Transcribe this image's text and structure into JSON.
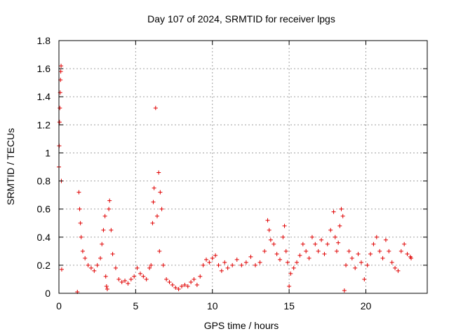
{
  "chart_data": {
    "type": "scatter",
    "title": "Day 107 of 2024, SRMTID for receiver lpgs",
    "xlabel": "GPS time / hours",
    "ylabel": "SRMTID / TECUs",
    "xlim": [
      0,
      24
    ],
    "ylim": [
      0,
      1.8
    ],
    "xticks": [
      0,
      5,
      10,
      15,
      20
    ],
    "yticks": [
      0,
      0.2,
      0.4,
      0.6,
      0.8,
      1,
      1.2,
      1.4,
      1.6,
      1.8
    ],
    "grid": true,
    "marker": "+",
    "color": "#e00000",
    "series": [
      {
        "name": "lpgs",
        "points": [
          [
            0.0,
            0.9
          ],
          [
            0.02,
            1.05
          ],
          [
            0.04,
            1.22
          ],
          [
            0.06,
            1.32
          ],
          [
            0.08,
            1.43
          ],
          [
            0.1,
            1.52
          ],
          [
            0.12,
            1.58
          ],
          [
            0.14,
            1.62
          ],
          [
            0.16,
            0.8
          ],
          [
            0.18,
            0.17
          ],
          [
            1.2,
            0.01
          ],
          [
            1.3,
            0.72
          ],
          [
            1.35,
            0.6
          ],
          [
            1.4,
            0.5
          ],
          [
            1.45,
            0.4
          ],
          [
            1.55,
            0.3
          ],
          [
            1.7,
            0.25
          ],
          [
            1.9,
            0.2
          ],
          [
            2.1,
            0.18
          ],
          [
            2.3,
            0.16
          ],
          [
            2.5,
            0.2
          ],
          [
            2.7,
            0.25
          ],
          [
            2.8,
            0.35
          ],
          [
            2.9,
            0.45
          ],
          [
            3.0,
            0.55
          ],
          [
            3.05,
            0.12
          ],
          [
            3.1,
            0.05
          ],
          [
            3.15,
            0.03
          ],
          [
            3.25,
            0.6
          ],
          [
            3.3,
            0.66
          ],
          [
            3.4,
            0.45
          ],
          [
            3.5,
            0.28
          ],
          [
            3.7,
            0.18
          ],
          [
            3.9,
            0.1
          ],
          [
            4.1,
            0.08
          ],
          [
            4.3,
            0.09
          ],
          [
            4.5,
            0.07
          ],
          [
            4.7,
            0.1
          ],
          [
            4.9,
            0.12
          ],
          [
            5.1,
            0.18
          ],
          [
            5.3,
            0.14
          ],
          [
            5.5,
            0.12
          ],
          [
            5.7,
            0.1
          ],
          [
            5.9,
            0.18
          ],
          [
            6.0,
            0.2
          ],
          [
            6.1,
            0.5
          ],
          [
            6.15,
            0.65
          ],
          [
            6.2,
            0.75
          ],
          [
            6.3,
            1.32
          ],
          [
            6.4,
            0.55
          ],
          [
            6.5,
            0.86
          ],
          [
            6.55,
            0.3
          ],
          [
            6.6,
            0.72
          ],
          [
            6.7,
            0.6
          ],
          [
            6.8,
            0.2
          ],
          [
            7.0,
            0.1
          ],
          [
            7.2,
            0.08
          ],
          [
            7.4,
            0.06
          ],
          [
            7.6,
            0.04
          ],
          [
            7.8,
            0.03
          ],
          [
            8.0,
            0.05
          ],
          [
            8.2,
            0.06
          ],
          [
            8.4,
            0.05
          ],
          [
            8.6,
            0.08
          ],
          [
            8.8,
            0.1
          ],
          [
            9.0,
            0.06
          ],
          [
            9.2,
            0.12
          ],
          [
            9.4,
            0.2
          ],
          [
            9.6,
            0.24
          ],
          [
            9.8,
            0.22
          ],
          [
            10.0,
            0.25
          ],
          [
            10.2,
            0.27
          ],
          [
            10.4,
            0.2
          ],
          [
            10.6,
            0.16
          ],
          [
            10.8,
            0.22
          ],
          [
            11.0,
            0.18
          ],
          [
            11.3,
            0.2
          ],
          [
            11.6,
            0.24
          ],
          [
            11.9,
            0.2
          ],
          [
            12.2,
            0.22
          ],
          [
            12.5,
            0.26
          ],
          [
            12.8,
            0.2
          ],
          [
            13.1,
            0.22
          ],
          [
            13.4,
            0.3
          ],
          [
            13.6,
            0.52
          ],
          [
            13.7,
            0.45
          ],
          [
            13.8,
            0.38
          ],
          [
            14.0,
            0.35
          ],
          [
            14.2,
            0.28
          ],
          [
            14.4,
            0.24
          ],
          [
            14.6,
            0.4
          ],
          [
            14.7,
            0.48
          ],
          [
            14.8,
            0.3
          ],
          [
            14.9,
            0.22
          ],
          [
            15.0,
            0.05
          ],
          [
            15.1,
            0.14
          ],
          [
            15.3,
            0.18
          ],
          [
            15.5,
            0.22
          ],
          [
            15.7,
            0.27
          ],
          [
            15.9,
            0.35
          ],
          [
            16.1,
            0.3
          ],
          [
            16.3,
            0.25
          ],
          [
            16.5,
            0.4
          ],
          [
            16.7,
            0.35
          ],
          [
            16.9,
            0.3
          ],
          [
            17.1,
            0.38
          ],
          [
            17.3,
            0.28
          ],
          [
            17.5,
            0.35
          ],
          [
            17.7,
            0.45
          ],
          [
            17.9,
            0.58
          ],
          [
            18.0,
            0.4
          ],
          [
            18.1,
            0.3
          ],
          [
            18.2,
            0.36
          ],
          [
            18.3,
            0.48
          ],
          [
            18.4,
            0.6
          ],
          [
            18.5,
            0.55
          ],
          [
            18.6,
            0.02
          ],
          [
            18.7,
            0.2
          ],
          [
            18.9,
            0.3
          ],
          [
            19.1,
            0.25
          ],
          [
            19.3,
            0.18
          ],
          [
            19.5,
            0.28
          ],
          [
            19.7,
            0.22
          ],
          [
            19.9,
            0.1
          ],
          [
            20.1,
            0.2
          ],
          [
            20.3,
            0.28
          ],
          [
            20.5,
            0.35
          ],
          [
            20.7,
            0.4
          ],
          [
            20.9,
            0.3
          ],
          [
            21.1,
            0.25
          ],
          [
            21.3,
            0.38
          ],
          [
            21.5,
            0.3
          ],
          [
            21.7,
            0.22
          ],
          [
            21.9,
            0.18
          ],
          [
            22.1,
            0.16
          ],
          [
            22.3,
            0.3
          ],
          [
            22.5,
            0.35
          ],
          [
            22.7,
            0.28
          ],
          [
            22.9,
            0.26
          ],
          [
            22.95,
            0.25
          ]
        ]
      }
    ]
  }
}
